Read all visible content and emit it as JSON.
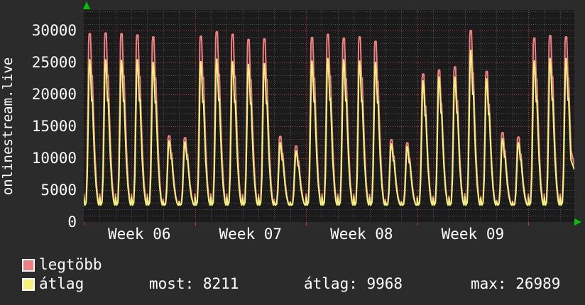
{
  "axis": {
    "left_label": "onlinestream.live"
  },
  "legend": [
    {
      "label": "legtöbb",
      "color": "#f08080"
    },
    {
      "label": "átlag",
      "color": "#f2f27c"
    }
  ],
  "stats": [
    {
      "label": "most",
      "value": "8211",
      "text": "most: 8211"
    },
    {
      "label": "átlag",
      "value": "9968",
      "text": "átlag: 9968"
    },
    {
      "label": "max",
      "value": "26989",
      "text": "max: 26989"
    }
  ],
  "chart_data": {
    "type": "line",
    "title": "onlinestream.live",
    "x_tick_labels": [
      "Week 06",
      "Week 07",
      "Week 08",
      "Week 09"
    ],
    "x_week_label_day_centers": [
      3.5,
      10.5,
      17.5,
      24.5
    ],
    "x_week_boundary_days": [
      0,
      7,
      14,
      21,
      28
    ],
    "days_shown": 31,
    "days_span": 30.9,
    "y_ticks": [
      0,
      5000,
      10000,
      15000,
      20000,
      25000,
      30000
    ],
    "y_minor_step": 1000,
    "ylim": [
      0,
      33222
    ],
    "grid": {
      "minor_color": "#4e4e4e",
      "major_color": "#b03a3a",
      "plot_bg": "#1b1b1b",
      "outer_bg": "#2b2b2b",
      "arrow_color": "#00c400"
    },
    "night_low": 2600,
    "series": [
      {
        "name": "legtöbb",
        "role": "daily-maximum",
        "color": "#f08080",
        "daily_peaks": [
          29500,
          29600,
          29500,
          29300,
          29000,
          13500,
          13200,
          29100,
          29800,
          29400,
          28600,
          28700,
          13400,
          11900,
          28900,
          29400,
          28800,
          29000,
          28300,
          12900,
          12400,
          23200,
          23800,
          24300,
          30000,
          23600,
          14000,
          13300,
          28800,
          29200,
          29000
        ],
        "end_value": 8900,
        "profile": [
          [
            0.0,
            0.07
          ],
          [
            0.07,
            0.0
          ],
          [
            0.15,
            0.03
          ],
          [
            0.21,
            0.24
          ],
          [
            0.27,
            0.62
          ],
          [
            0.31,
            0.96
          ],
          [
            0.34,
            1.0
          ],
          [
            0.42,
            1.0
          ],
          [
            0.46,
            0.88
          ],
          [
            0.5,
            0.74
          ],
          [
            0.54,
            0.76
          ],
          [
            0.6,
            0.57
          ],
          [
            0.69,
            0.33
          ],
          [
            0.79,
            0.14
          ],
          [
            0.88,
            0.04
          ],
          [
            0.95,
            0.01
          ],
          [
            1.0,
            0.04
          ]
        ]
      },
      {
        "name": "átlag",
        "role": "daily-average",
        "color": "#f2f27c",
        "daily_peaks": [
          25500,
          25500,
          25400,
          25500,
          25100,
          12800,
          12600,
          25200,
          25600,
          25200,
          24800,
          24900,
          12500,
          11200,
          25300,
          25700,
          25500,
          25300,
          25100,
          12300,
          11900,
          22200,
          22800,
          22800,
          26989,
          22500,
          13100,
          12500,
          25300,
          25700,
          25700
        ],
        "end_value": 8211,
        "profile": [
          [
            0.0,
            0.06
          ],
          [
            0.07,
            0.0
          ],
          [
            0.15,
            0.02
          ],
          [
            0.22,
            0.2
          ],
          [
            0.28,
            0.58
          ],
          [
            0.33,
            0.92
          ],
          [
            0.37,
            1.0
          ],
          [
            0.41,
            0.95
          ],
          [
            0.46,
            0.82
          ],
          [
            0.5,
            0.71
          ],
          [
            0.54,
            0.73
          ],
          [
            0.6,
            0.54
          ],
          [
            0.68,
            0.31
          ],
          [
            0.78,
            0.13
          ],
          [
            0.88,
            0.03
          ],
          [
            0.95,
            0.0
          ],
          [
            1.0,
            0.03
          ]
        ]
      }
    ],
    "last_day_clip_t": 0.7,
    "stats": {
      "most": 8211,
      "atlag": 9968,
      "max": 26989
    }
  }
}
